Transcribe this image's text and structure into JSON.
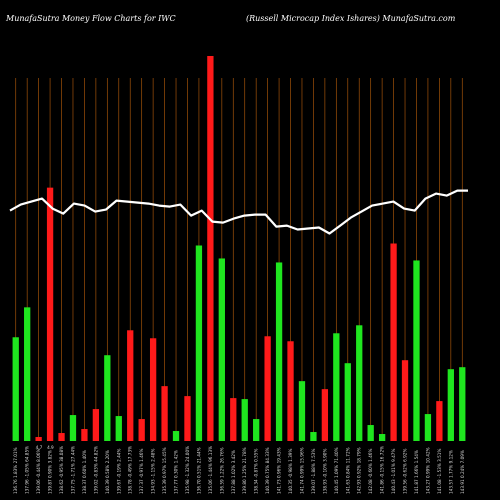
{
  "header": {
    "left": "MunafaSutra  Money Flow  Charts for IWC",
    "right": "(Russell Microcap Index Ishares) MunafaSutra.com"
  },
  "chart_data": {
    "type": "bar",
    "ylim": [
      0,
      390
    ],
    "grid": "vertical",
    "colors": {
      "up": "#1fe61f",
      "down": "#ff1a1a",
      "line": "#ffffff",
      "grid": "#a0520a",
      "background": "#000000"
    },
    "bars": [
      {
        "label": "136.76 1.83% 27.01%",
        "value": 104,
        "dir": "up"
      },
      {
        "label": "137.96 -1.05% 64.85%",
        "value": 134,
        "dir": "up"
      },
      {
        "label": "139.06 -0.44% 8.06%",
        "value": 4,
        "dir": "down"
      },
      {
        "label": "139.87 0.90% 3.82%",
        "value": 254,
        "dir": "down"
      },
      {
        "label": "138.62 -0.95% 38.08%",
        "value": 8,
        "dir": "down"
      },
      {
        "label": "137.75 -1.71% 27.44%",
        "value": 26,
        "dir": "up"
      },
      {
        "label": "138.37 0.60% 1.40%",
        "value": 12,
        "dir": "down"
      },
      {
        "label": "139.02 -0.83% 44.82%",
        "value": 32,
        "dir": "down"
      },
      {
        "label": "140.39 0.58% 2.20%",
        "value": 86,
        "dir": "up"
      },
      {
        "label": "139.67 -0.19% 2.44%",
        "value": 25,
        "dir": "up"
      },
      {
        "label": "138.78 -0.49% 17.73%",
        "value": 111,
        "dir": "down"
      },
      {
        "label": "137.37 -0.97% 1.46%",
        "value": 22,
        "dir": "down"
      },
      {
        "label": "134.93 -1.15% 2.48%",
        "value": 103,
        "dir": "down"
      },
      {
        "label": "135.39 0.97% 15.45%",
        "value": 55,
        "dir": "down"
      },
      {
        "label": "137.77 0.30% 1.42%",
        "value": 10,
        "dir": "up"
      },
      {
        "label": "135.98 -1.32% 24.00%",
        "value": 45,
        "dir": "down"
      },
      {
        "label": "136.70 0.51% 21.44%",
        "value": 196,
        "dir": "up"
      },
      {
        "label": "135.06 -1.44% 96.13%",
        "value": 386,
        "dir": "down"
      },
      {
        "label": "136.59 1.22% 26.76%",
        "value": 183,
        "dir": "up"
      },
      {
        "label": "137.88 1.02% 3.42%",
        "value": 43,
        "dir": "down"
      },
      {
        "label": "139.80 1.25% 21.78%",
        "value": 42,
        "dir": "up"
      },
      {
        "label": "138.34 -0.87% 0.55%",
        "value": 22,
        "dir": "up"
      },
      {
        "label": "140.39 0.75% 84.33%",
        "value": 105,
        "dir": "down"
      },
      {
        "label": "141.73 0.96% 19.43%",
        "value": 179,
        "dir": "up"
      },
      {
        "label": "140.35 -0.98% 1.39%",
        "value": 100,
        "dir": "down"
      },
      {
        "label": "141.74 0.99% 15.96%",
        "value": 60,
        "dir": "up"
      },
      {
        "label": "139.07 -1.88% 7.53%",
        "value": 9,
        "dir": "up"
      },
      {
        "label": "138.93 -0.10% 3.90%",
        "value": 52,
        "dir": "down"
      },
      {
        "label": "140.45 1.09% 71.40%",
        "value": 108,
        "dir": "up"
      },
      {
        "label": "141.63 0.84% 11.72%",
        "value": 78,
        "dir": "up"
      },
      {
        "label": "142.93 0.92% 18.79%",
        "value": 116,
        "dir": "up"
      },
      {
        "label": "142.08 -0.60% 1.46%",
        "value": 16,
        "dir": "up"
      },
      {
        "label": "141.86 -0.15% 16.72%",
        "value": 7,
        "dir": "up"
      },
      {
        "label": "140.43 -1.01% 9.47%",
        "value": 198,
        "dir": "down"
      },
      {
        "label": "139.56 -0.62% 6.92%",
        "value": 81,
        "dir": "down"
      },
      {
        "label": "141.87 1.66% 1.54%",
        "value": 181,
        "dir": "up"
      },
      {
        "label": "143.27 0.99% 10.42%",
        "value": 27,
        "dir": "up"
      },
      {
        "label": "141.08 -1.53% 3.51%",
        "value": 40,
        "dir": "down"
      },
      {
        "label": "143.57 1.77% 9.12%",
        "value": 72,
        "dir": "up"
      },
      {
        "label": "143.91 0.24% 7.09%",
        "value": 74,
        "dir": "up"
      }
    ],
    "price_line": [
      231,
      237,
      240,
      243,
      233,
      228,
      238,
      236,
      230,
      232,
      241,
      240,
      239,
      238,
      236,
      235,
      237,
      226,
      231,
      220,
      219,
      223,
      226,
      227,
      227,
      215,
      216,
      212,
      213,
      214,
      208,
      216,
      224,
      230,
      236,
      238,
      240,
      233,
      231,
      243,
      248,
      246,
      251,
      251
    ],
    "line_range": [
      0,
      390
    ],
    "extra_labels": [
      {
        "text": "4.7",
        "bar": 2
      },
      {
        "text": "4.9",
        "bar": 3
      }
    ]
  }
}
